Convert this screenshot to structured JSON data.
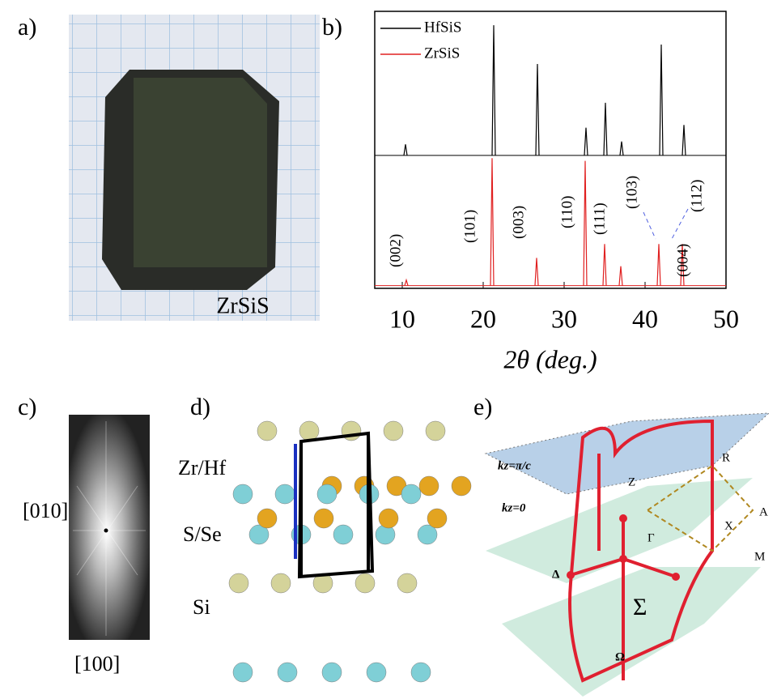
{
  "figure": {
    "a": {
      "label": "a)",
      "sample": "ZrSiS"
    },
    "c": {
      "label": "c)",
      "axis_vertical": "[010]",
      "axis_horizontal": "[100]"
    },
    "d": {
      "label": "d)",
      "atoms": [
        "Zr/Hf",
        "S/Se",
        "Si"
      ]
    },
    "e": {
      "label": "e)",
      "plane_top": "kz=π/c",
      "plane_mid": "kz=0",
      "points": [
        "R",
        "Z",
        "A",
        "X",
        "Γ",
        "M",
        "Δ",
        "Σ",
        "Ω"
      ]
    }
  },
  "chart_data": {
    "type": "spectrum",
    "panel_label": "b)",
    "x_label": "2θ (deg.)",
    "xlim": [
      6.6,
      50
    ],
    "xticks": [
      10,
      20,
      30,
      40,
      50
    ],
    "ylim": [
      0,
      100
    ],
    "series": [
      {
        "name": "HfSiS",
        "color": "#000000",
        "baseline": 48,
        "x": [
          10.4,
          21.3,
          26.7,
          32.7,
          35.1,
          37.1,
          42.0,
          44.8
        ],
        "values": [
          52,
          95,
          81,
          58,
          67,
          53,
          88,
          59
        ]
      },
      {
        "name": "ZrSiS",
        "color": "#e02020",
        "baseline": 1,
        "x": [
          10.5,
          21.1,
          26.6,
          32.6,
          35.0,
          37.0,
          41.7,
          44.6
        ],
        "values": [
          3,
          47,
          11,
          46,
          16,
          8,
          16,
          16
        ]
      }
    ],
    "annotations": [
      "(002)",
      "(101)",
      "(003)",
      "(110)",
      "(111)",
      "(103)",
      "(004)",
      "(112)"
    ]
  }
}
